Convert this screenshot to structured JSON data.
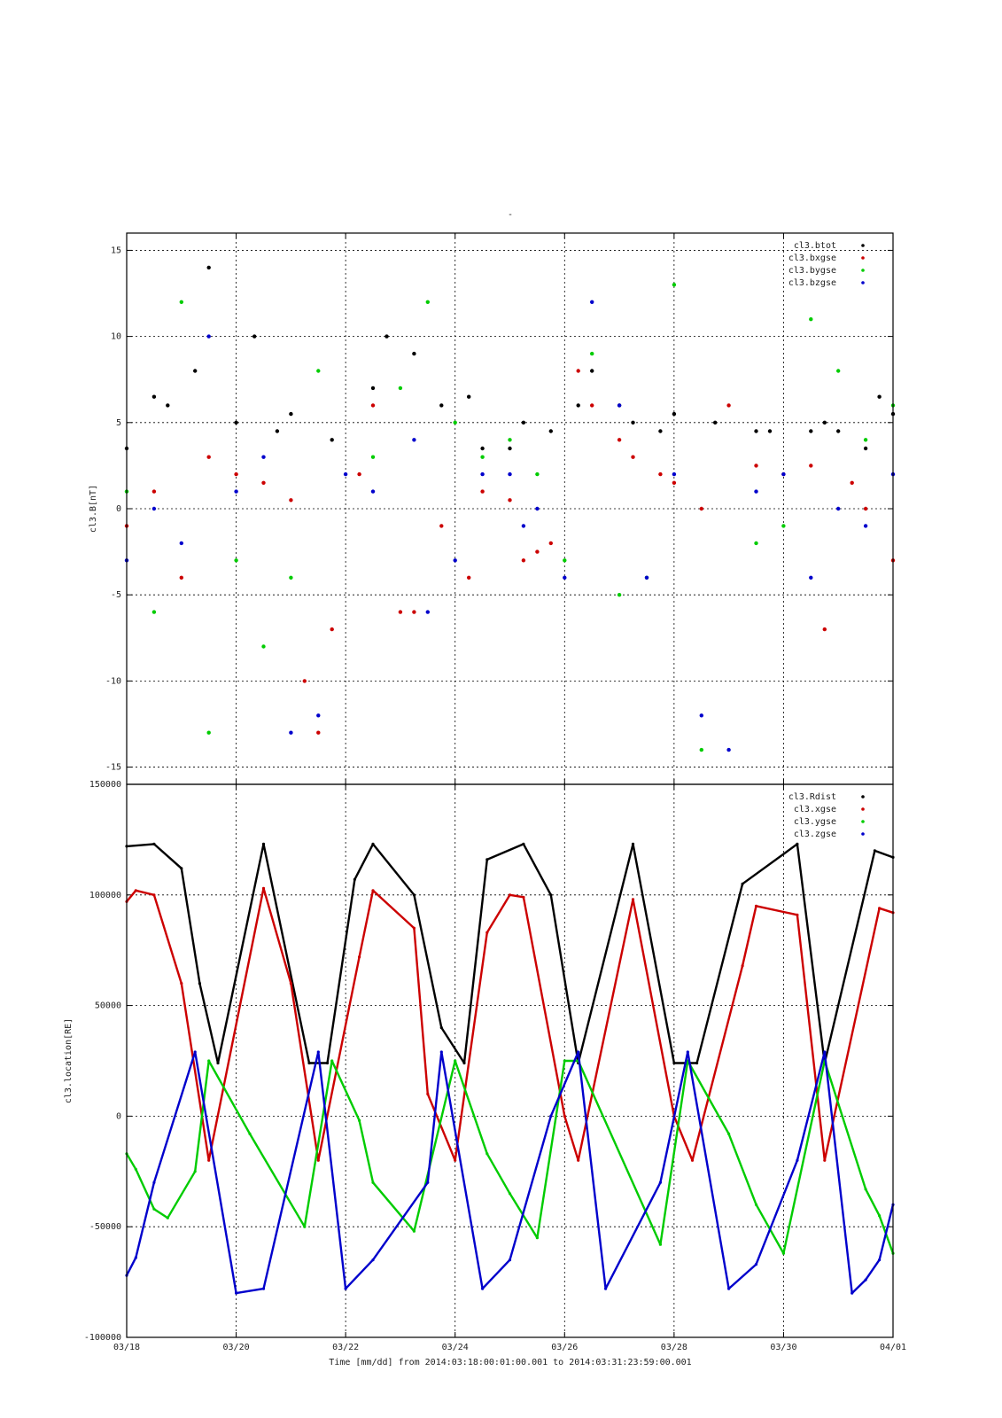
{
  "figure": {
    "top_title": "-",
    "x_axis_title": "Time [mm/dd]  from 2014:03:18:00:01:00.001  to  2014:03:31:23:59:00.001",
    "x_ticks": [
      {
        "label": "03/18",
        "date": "2014-03-18"
      },
      {
        "label": "03/20",
        "date": "2014-03-20"
      },
      {
        "label": "03/22",
        "date": "2014-03-22"
      },
      {
        "label": "03/24",
        "date": "2014-03-24"
      },
      {
        "label": "03/26",
        "date": "2014-03-26"
      },
      {
        "label": "03/28",
        "date": "2014-03-28"
      },
      {
        "label": "03/30",
        "date": "2014-03-30"
      },
      {
        "label": "04/01",
        "date": "2014-04-01"
      }
    ]
  },
  "chart_data": [
    {
      "type": "scatter",
      "title": "",
      "ylabel": "cl3.B[nT]",
      "xlim": [
        "2014-03-18",
        "2014-04-01"
      ],
      "ylim": [
        -16,
        16
      ],
      "y_ticks": [
        -15,
        -10,
        -5,
        0,
        5,
        10,
        15
      ],
      "grid": true,
      "legend": "top-right",
      "series": [
        {
          "name": "cl3.btot",
          "color": "#000000",
          "x": [
            "2014-03-18",
            "2014-03-18 12:00",
            "2014-03-18 18:00",
            "2014-03-19 06:00",
            "2014-03-19 12:00",
            "2014-03-20",
            "2014-03-20 08:00",
            "2014-03-20 18:00",
            "2014-03-21",
            "2014-03-21 18:00",
            "2014-03-22 12:00",
            "2014-03-22 18:00",
            "2014-03-23 06:00",
            "2014-03-23 18:00",
            "2014-03-24 06:00",
            "2014-03-24 12:00",
            "2014-03-25",
            "2014-03-25 06:00",
            "2014-03-25 18:00",
            "2014-03-26 06:00",
            "2014-03-26 12:00",
            "2014-03-27",
            "2014-03-27 06:00",
            "2014-03-27 18:00",
            "2014-03-28",
            "2014-03-28 18:00",
            "2014-03-29 12:00",
            "2014-03-29 18:00",
            "2014-03-30 12:00",
            "2014-03-30 18:00",
            "2014-03-31",
            "2014-03-31 12:00",
            "2014-03-31 18:00",
            "2014-04-01"
          ],
          "y": [
            3.5,
            6.5,
            6.0,
            8.0,
            14.0,
            5.0,
            10.0,
            4.5,
            5.5,
            4.0,
            7.0,
            10.0,
            9.0,
            6.0,
            6.5,
            3.5,
            3.5,
            5.0,
            4.5,
            6.0,
            8.0,
            6.0,
            5.0,
            4.5,
            5.5,
            5.0,
            4.5,
            4.5,
            4.5,
            5.0,
            4.5,
            3.5,
            6.5,
            5.5
          ]
        },
        {
          "name": "cl3.bxgse",
          "color": "#cc0000",
          "x": [
            "2014-03-18",
            "2014-03-18 12:00",
            "2014-03-19",
            "2014-03-19 12:00",
            "2014-03-20",
            "2014-03-20 12:00",
            "2014-03-21",
            "2014-03-21 06:00",
            "2014-03-21 12:00",
            "2014-03-21 18:00",
            "2014-03-22 06:00",
            "2014-03-22 12:00",
            "2014-03-23",
            "2014-03-23 06:00",
            "2014-03-23 18:00",
            "2014-03-24 06:00",
            "2014-03-24 12:00",
            "2014-03-25",
            "2014-03-25 06:00",
            "2014-03-25 12:00",
            "2014-03-25 18:00",
            "2014-03-26 06:00",
            "2014-03-26 12:00",
            "2014-03-27",
            "2014-03-27 06:00",
            "2014-03-27 18:00",
            "2014-03-28",
            "2014-03-28 12:00",
            "2014-03-29",
            "2014-03-29 12:00",
            "2014-03-30",
            "2014-03-30 12:00",
            "2014-03-30 18:00",
            "2014-03-31 06:00",
            "2014-03-31 12:00",
            "2014-04-01"
          ],
          "y": [
            -1.0,
            1.0,
            -4.0,
            3.0,
            2.0,
            1.5,
            0.5,
            -10.0,
            -13.0,
            -7.0,
            2.0,
            6.0,
            -6.0,
            -6.0,
            -1.0,
            -4.0,
            1.0,
            0.5,
            -3.0,
            -2.5,
            -2.0,
            8.0,
            6.0,
            4.0,
            3.0,
            2.0,
            1.5,
            0.0,
            6.0,
            2.5,
            2.0,
            2.5,
            -7.0,
            1.5,
            0.0,
            -3.0
          ]
        },
        {
          "name": "cl3.bygse",
          "color": "#00cc00",
          "x": [
            "2014-03-18",
            "2014-03-18 12:00",
            "2014-03-19",
            "2014-03-19 12:00",
            "2014-03-20",
            "2014-03-20 12:00",
            "2014-03-21",
            "2014-03-21 12:00",
            "2014-03-22 12:00",
            "2014-03-23",
            "2014-03-23 12:00",
            "2014-03-24",
            "2014-03-24 12:00",
            "2014-03-25",
            "2014-03-25 12:00",
            "2014-03-26",
            "2014-03-26 12:00",
            "2014-03-27",
            "2014-03-27 12:00",
            "2014-03-28",
            "2014-03-28 12:00",
            "2014-03-29 12:00",
            "2014-03-30",
            "2014-03-30 12:00",
            "2014-03-31",
            "2014-03-31 12:00",
            "2014-04-01"
          ],
          "y": [
            1.0,
            -6.0,
            12.0,
            -13.0,
            -3.0,
            -8.0,
            -4.0,
            8.0,
            3.0,
            7.0,
            12.0,
            5.0,
            3.0,
            4.0,
            2.0,
            -3.0,
            9.0,
            -5.0,
            -4.0,
            13.0,
            -14.0,
            -2.0,
            -1.0,
            11.0,
            8.0,
            4.0,
            6.0
          ]
        },
        {
          "name": "cl3.bzgse",
          "color": "#0000cc",
          "x": [
            "2014-03-18",
            "2014-03-18 12:00",
            "2014-03-19",
            "2014-03-19 12:00",
            "2014-03-20",
            "2014-03-20 12:00",
            "2014-03-21",
            "2014-03-21 12:00",
            "2014-03-22",
            "2014-03-22 12:00",
            "2014-03-23 06:00",
            "2014-03-23 12:00",
            "2014-03-24",
            "2014-03-24 12:00",
            "2014-03-25",
            "2014-03-25 06:00",
            "2014-03-25 12:00",
            "2014-03-26",
            "2014-03-26 12:00",
            "2014-03-27",
            "2014-03-27 12:00",
            "2014-03-28",
            "2014-03-28 12:00",
            "2014-03-29",
            "2014-03-29 12:00",
            "2014-03-30",
            "2014-03-30 12:00",
            "2014-03-31",
            "2014-03-31 12:00",
            "2014-04-01"
          ],
          "y": [
            -3.0,
            0.0,
            -2.0,
            10.0,
            1.0,
            3.0,
            -13.0,
            -12.0,
            2.0,
            1.0,
            4.0,
            -6.0,
            -3.0,
            2.0,
            2.0,
            -1.0,
            0.0,
            -4.0,
            12.0,
            6.0,
            -4.0,
            2.0,
            -12.0,
            -14.0,
            1.0,
            2.0,
            -4.0,
            0.0,
            -1.0,
            2.0
          ]
        }
      ]
    },
    {
      "type": "line",
      "title": "",
      "ylabel": "cl3.location[RE]",
      "xlim": [
        "2014-03-18",
        "2014-04-01"
      ],
      "ylim": [
        -100000,
        150000
      ],
      "y_ticks": [
        -100000,
        -50000,
        0,
        50000,
        100000,
        150000
      ],
      "grid": true,
      "legend": "top-right",
      "series": [
        {
          "name": "cl3.Rdist",
          "color": "#000000",
          "x": [
            "2014-03-18",
            "2014-03-18 12:00",
            "2014-03-19",
            "2014-03-19 08:00",
            "2014-03-19 16:00",
            "2014-03-20 12:00",
            "2014-03-21 08:00",
            "2014-03-21 16:00",
            "2014-03-22 04:00",
            "2014-03-22 12:00",
            "2014-03-23 06:00",
            "2014-03-23 18:00",
            "2014-03-24 04:00",
            "2014-03-24 14:00",
            "2014-03-25 06:00",
            "2014-03-25 18:00",
            "2014-03-26 06:00",
            "2014-03-27 06:00",
            "2014-03-28",
            "2014-03-28 10:00",
            "2014-03-29 06:00",
            "2014-03-30 06:00",
            "2014-03-30 18:00",
            "2014-03-31 16:00",
            "2014-04-01"
          ],
          "y": [
            122000,
            123000,
            112000,
            60000,
            24000,
            123000,
            24000,
            24000,
            107000,
            123000,
            100000,
            40000,
            24000,
            116000,
            123000,
            100000,
            24000,
            123000,
            24000,
            24000,
            105000,
            123000,
            24000,
            120000,
            117000
          ]
        },
        {
          "name": "cl3.xgse",
          "color": "#cc0000",
          "x": [
            "2014-03-18",
            "2014-03-18 04:00",
            "2014-03-18 12:00",
            "2014-03-19",
            "2014-03-19 12:00",
            "2014-03-20 12:00",
            "2014-03-21",
            "2014-03-21 12:00",
            "2014-03-22 06:00",
            "2014-03-22 12:00",
            "2014-03-23 06:00",
            "2014-03-23 12:00",
            "2014-03-24",
            "2014-03-24 14:00",
            "2014-03-25",
            "2014-03-25 06:00",
            "2014-03-26",
            "2014-03-26 06:00",
            "2014-03-27 06:00",
            "2014-03-28",
            "2014-03-28 08:00",
            "2014-03-29 06:00",
            "2014-03-29 12:00",
            "2014-03-30 06:00",
            "2014-03-30 18:00",
            "2014-03-31 18:00",
            "2014-04-01"
          ],
          "y": [
            97000,
            102000,
            100000,
            60000,
            -20000,
            103000,
            60000,
            -20000,
            72000,
            102000,
            85000,
            10000,
            -20000,
            83000,
            100000,
            99000,
            0,
            -20000,
            98000,
            0,
            -20000,
            68000,
            95000,
            91000,
            -20000,
            94000,
            92000
          ]
        },
        {
          "name": "cl3.ygse",
          "color": "#00cc00",
          "x": [
            "2014-03-18",
            "2014-03-18 04:00",
            "2014-03-18 12:00",
            "2014-03-18 18:00",
            "2014-03-19 06:00",
            "2014-03-19 12:00",
            "2014-03-20 06:00",
            "2014-03-21 06:00",
            "2014-03-21 18:00",
            "2014-03-22 06:00",
            "2014-03-22 12:00",
            "2014-03-23 06:00",
            "2014-03-24",
            "2014-03-24 14:00",
            "2014-03-25",
            "2014-03-25 12:00",
            "2014-03-26",
            "2014-03-26 06:00",
            "2014-03-27 18:00",
            "2014-03-28 06:00",
            "2014-03-29",
            "2014-03-29 12:00",
            "2014-03-30",
            "2014-03-30 18:00",
            "2014-03-31 12:00",
            "2014-03-31 18:00",
            "2014-04-01"
          ],
          "y": [
            -17000,
            -24000,
            -42000,
            -46000,
            -25000,
            25000,
            -8000,
            -50000,
            25000,
            -2000,
            -30000,
            -52000,
            25000,
            -17000,
            -35000,
            -55000,
            25000,
            25000,
            -58000,
            25000,
            -8000,
            -40000,
            -62000,
            25000,
            -33000,
            -45000,
            -62000
          ]
        },
        {
          "name": "cl3.zgse",
          "color": "#0000cc",
          "x": [
            "2014-03-18",
            "2014-03-18 04:00",
            "2014-03-18 12:00",
            "2014-03-19 06:00",
            "2014-03-20",
            "2014-03-20 12:00",
            "2014-03-21 12:00",
            "2014-03-22",
            "2014-03-22 12:00",
            "2014-03-23 12:00",
            "2014-03-23 18:00",
            "2014-03-24 12:00",
            "2014-03-25",
            "2014-03-25 18:00",
            "2014-03-26 06:00",
            "2014-03-26 18:00",
            "2014-03-27 18:00",
            "2014-03-28 06:00",
            "2014-03-29",
            "2014-03-29 12:00",
            "2014-03-30 06:00",
            "2014-03-30 18:00",
            "2014-03-31 06:00",
            "2014-03-31 12:00",
            "2014-03-31 18:00",
            "2014-04-01"
          ],
          "y": [
            -72000,
            -64000,
            -30000,
            29000,
            -80000,
            -78000,
            29000,
            -78000,
            -65000,
            -30000,
            29000,
            -78000,
            -65000,
            0,
            29000,
            -78000,
            -30000,
            29000,
            -78000,
            -67000,
            -20000,
            29000,
            -80000,
            -74000,
            -65000,
            -40000
          ]
        }
      ]
    }
  ]
}
